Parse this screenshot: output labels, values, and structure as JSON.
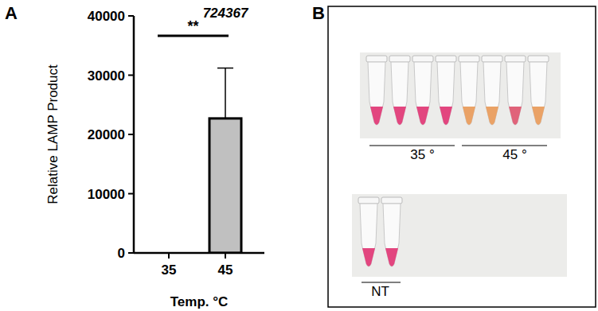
{
  "panel_labels": [
    "A",
    "B"
  ],
  "chart_data": {
    "type": "bar",
    "title": "724367",
    "categories": [
      "35",
      "45"
    ],
    "values": [
      0,
      22700
    ],
    "errors": [
      0,
      8500
    ],
    "color": "#c0c0c0",
    "x_label": "Temp. °C",
    "y_label": "Relative LAMP Product",
    "ylim": [
      0,
      40000
    ],
    "yticks": [
      0,
      10000,
      20000,
      30000,
      40000
    ],
    "grid": false,
    "annotations": [
      {
        "text": "**",
        "between": [
          "35",
          "45"
        ]
      }
    ]
  },
  "photo": {
    "rows": [
      {
        "groups": [
          {
            "label": "35 °",
            "tubes": [
              "#e2467f",
              "#e2467f",
              "#e2467f",
              "#e2467f"
            ]
          },
          {
            "label": "45 °",
            "tubes": [
              "#eaa266",
              "#eaa266",
              "#e0637a",
              "#eaa266"
            ]
          }
        ]
      },
      {
        "groups": [
          {
            "label": "NT",
            "tubes": [
              "#e2467f",
              "#e2467f"
            ]
          }
        ]
      }
    ]
  }
}
